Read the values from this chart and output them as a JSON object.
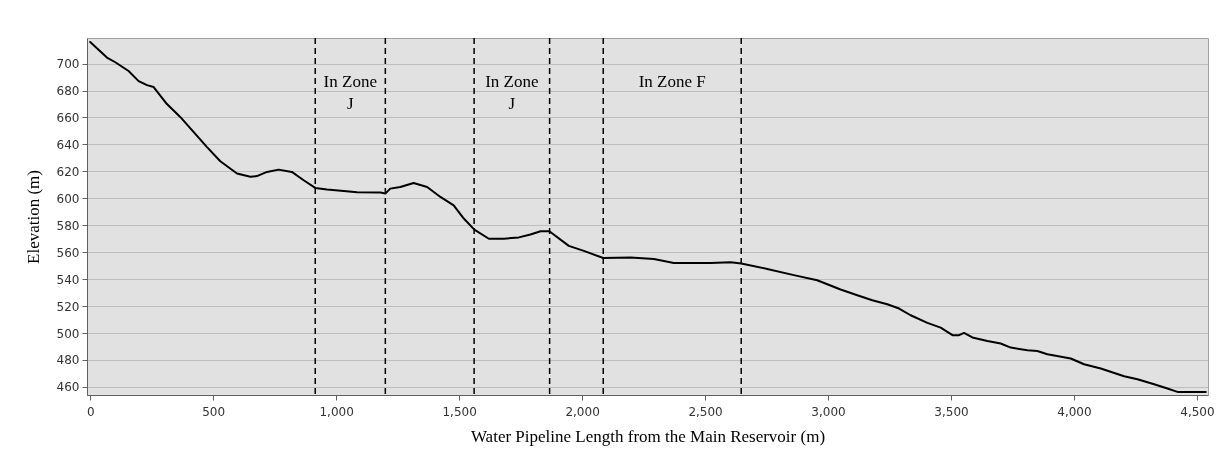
{
  "chart_data": {
    "type": "line",
    "xlabel": "Water Pipeline Length from the Main Reservoir (m)",
    "ylabel": "Elevation (m)",
    "x": [
      0,
      68,
      102,
      156,
      197,
      231,
      258,
      312,
      366,
      475,
      529,
      597,
      651,
      678,
      719,
      766,
      820,
      868,
      915,
      963,
      1031,
      1085,
      1180,
      1200,
      1220,
      1261,
      1315,
      1370,
      1424,
      1478,
      1519,
      1562,
      1621,
      1682,
      1743,
      1790,
      1831,
      1867,
      1946,
      2007,
      2086,
      2197,
      2292,
      2373,
      2522,
      2604,
      2647,
      2753,
      2861,
      2956,
      3051,
      3119,
      3180,
      3241,
      3289,
      3336,
      3404,
      3458,
      3506,
      3533,
      3553,
      3587,
      3648,
      3702,
      3743,
      3811,
      3851,
      3892,
      3987,
      4041,
      4109,
      4204,
      4258,
      4326,
      4380,
      4421,
      4536
    ],
    "series": [
      {
        "color": "#000000",
        "values": [
          716,
          704.5,
          701,
          694.5,
          687,
          684,
          682.6,
          670,
          660.4,
          638,
          627.5,
          618.4,
          616,
          616.5,
          619.6,
          621.3,
          619.6,
          613.4,
          607.7,
          606.5,
          605.5,
          604.5,
          604.3,
          603.5,
          607.2,
          608.4,
          611.4,
          608.4,
          601,
          594.8,
          585,
          576.8,
          570,
          570,
          571,
          573.1,
          575.5,
          575.5,
          564.7,
          561,
          555.7,
          556,
          555,
          552,
          552,
          552.5,
          551.6,
          547.6,
          543,
          539.2,
          532.3,
          528,
          524.3,
          521.4,
          518.2,
          513.2,
          507.5,
          504,
          498.4,
          498.4,
          500.1,
          496.7,
          494.1,
          492.2,
          489.2,
          487.2,
          486.7,
          484.3,
          481.1,
          476.8,
          473.7,
          467.9,
          465.7,
          462,
          458.8,
          456.3,
          456.3
        ]
      }
    ],
    "xlim": [
      -13,
      4545
    ],
    "ylim": [
      454,
      719
    ],
    "xticks": [
      0,
      500,
      {
        "value": 1000,
        "label": "1,000"
      },
      {
        "value": 1500,
        "label": "1,500"
      },
      {
        "value": 2000,
        "label": "2,000"
      },
      {
        "value": 2500,
        "label": "2,500"
      },
      {
        "value": 3000,
        "label": "3,000"
      },
      {
        "value": 3500,
        "label": "3,500"
      },
      {
        "value": 4000,
        "label": "4,000"
      },
      {
        "value": 4500,
        "label": "4,500"
      }
    ],
    "yticks": [
      460,
      480,
      500,
      520,
      540,
      560,
      580,
      600,
      620,
      640,
      660,
      680,
      700
    ],
    "grid": "y",
    "line_style": "solid",
    "marker": "none",
    "ref_lines": [
      {
        "axis": "x",
        "value": 915,
        "line_style": "dashed",
        "color": "#000000"
      },
      {
        "axis": "x",
        "value": 1200,
        "line_style": "dashed",
        "color": "#000000"
      },
      {
        "axis": "x",
        "value": 1561,
        "line_style": "dashed",
        "color": "#000000"
      },
      {
        "axis": "x",
        "value": 1868,
        "line_style": "dashed",
        "color": "#000000"
      },
      {
        "axis": "x",
        "value": 2086,
        "line_style": "dashed",
        "color": "#000000"
      },
      {
        "axis": "x",
        "value": 2647,
        "line_style": "dashed",
        "color": "#000000"
      }
    ],
    "annotations": [
      "In Zone J",
      "In Zone J",
      "In Zone F"
    ]
  }
}
